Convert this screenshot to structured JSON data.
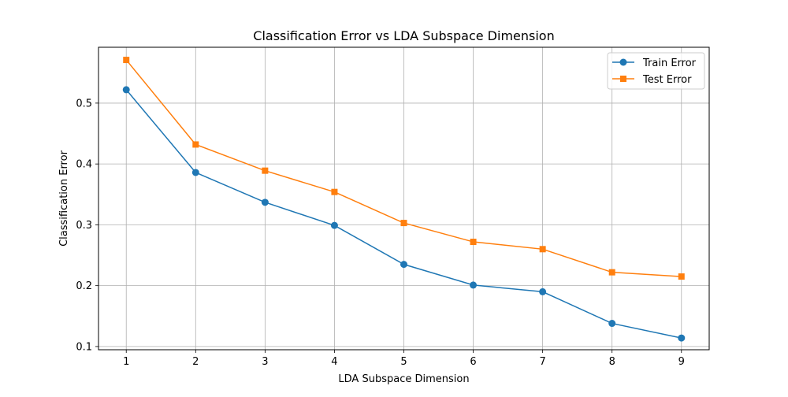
{
  "chart_data": {
    "type": "line",
    "title": "Classification Error vs LDA Subspace Dimension",
    "xlabel": "LDA Subspace Dimension",
    "ylabel": "Classification Error",
    "x": [
      1,
      2,
      3,
      4,
      5,
      6,
      7,
      8,
      9
    ],
    "x_ticks": [
      "1",
      "2",
      "3",
      "4",
      "5",
      "6",
      "7",
      "8",
      "9"
    ],
    "y_ticks": [
      "0.1",
      "0.2",
      "0.3",
      "0.4",
      "0.5"
    ],
    "xlim": [
      0.6,
      9.4
    ],
    "ylim": [
      0.0947,
      0.5918
    ],
    "grid": true,
    "legend_position": "top-right",
    "series": [
      {
        "name": "Train Error",
        "color": "#1f77b4",
        "marker": "circle",
        "values": [
          0.522,
          0.386,
          0.337,
          0.299,
          0.235,
          0.201,
          0.19,
          0.138,
          0.114
        ]
      },
      {
        "name": "Test Error",
        "color": "#ff7f0e",
        "marker": "square",
        "values": [
          0.571,
          0.432,
          0.389,
          0.354,
          0.303,
          0.272,
          0.26,
          0.222,
          0.215
        ]
      }
    ]
  }
}
